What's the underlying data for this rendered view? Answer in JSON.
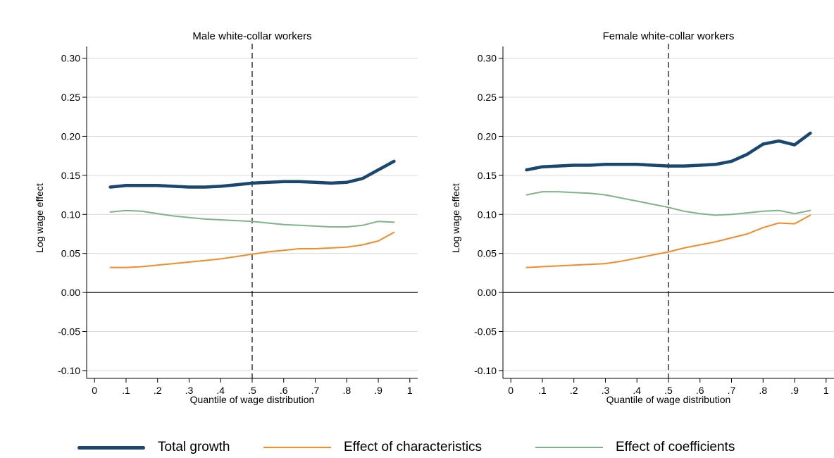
{
  "colors": {
    "total_growth": "#1a476f",
    "characteristics": "#f28c28",
    "coefficients": "#7fb389",
    "grid": "#d9d9d9",
    "axis": "#000000"
  },
  "legend": {
    "items": [
      {
        "key": "total_growth",
        "label": "Total growth"
      },
      {
        "key": "characteristics",
        "label": "Effect of characteristics"
      },
      {
        "key": "coefficients",
        "label": "Effect of coefficients"
      }
    ]
  },
  "chart_data": [
    {
      "type": "line",
      "title": "Male white-collar workers",
      "xlabel": "Quantile of wage distribution",
      "ylabel": "Log wage effect",
      "xlim": [
        -0.025,
        1.025
      ],
      "ylim": [
        -0.11,
        0.315
      ],
      "xticks": [
        0,
        0.1,
        0.2,
        0.3,
        0.4,
        0.5,
        0.6,
        0.7,
        0.8,
        0.9,
        1
      ],
      "xtick_labels": [
        "0",
        ".1",
        ".2",
        ".3",
        ".4",
        ".5",
        ".6",
        ".7",
        ".8",
        ".9",
        "1"
      ],
      "yticks": [
        -0.1,
        -0.05,
        0.0,
        0.05,
        0.1,
        0.15,
        0.2,
        0.25,
        0.3
      ],
      "ytick_labels": [
        "-0.10",
        "-0.05",
        "0.00",
        "0.05",
        "0.10",
        "0.15",
        "0.20",
        "0.25",
        "0.30"
      ],
      "grid": true,
      "reference_lines": {
        "vertical_dashed_x": 0.5,
        "horizontal_y": 0
      },
      "series": [
        {
          "name": "Total growth",
          "key": "total_growth",
          "x": [
            0.05,
            0.1,
            0.15,
            0.2,
            0.25,
            0.3,
            0.35,
            0.4,
            0.45,
            0.5,
            0.55,
            0.6,
            0.65,
            0.7,
            0.75,
            0.8,
            0.85,
            0.9,
            0.95
          ],
          "y": [
            0.135,
            0.137,
            0.137,
            0.137,
            0.136,
            0.135,
            0.135,
            0.136,
            0.138,
            0.14,
            0.141,
            0.142,
            0.142,
            0.141,
            0.14,
            0.141,
            0.146,
            0.157,
            0.168
          ]
        },
        {
          "name": "Effect of characteristics",
          "key": "characteristics",
          "x": [
            0.05,
            0.1,
            0.15,
            0.2,
            0.25,
            0.3,
            0.35,
            0.4,
            0.45,
            0.5,
            0.55,
            0.6,
            0.65,
            0.7,
            0.75,
            0.8,
            0.85,
            0.9,
            0.95
          ],
          "y": [
            0.032,
            0.032,
            0.033,
            0.035,
            0.037,
            0.039,
            0.041,
            0.043,
            0.046,
            0.049,
            0.052,
            0.054,
            0.056,
            0.056,
            0.057,
            0.058,
            0.061,
            0.066,
            0.077
          ]
        },
        {
          "name": "Effect of coefficients",
          "key": "coefficients",
          "x": [
            0.05,
            0.1,
            0.15,
            0.2,
            0.25,
            0.3,
            0.35,
            0.4,
            0.45,
            0.5,
            0.55,
            0.6,
            0.65,
            0.7,
            0.75,
            0.8,
            0.85,
            0.9,
            0.95
          ],
          "y": [
            0.103,
            0.105,
            0.104,
            0.101,
            0.098,
            0.096,
            0.094,
            0.093,
            0.092,
            0.091,
            0.089,
            0.087,
            0.086,
            0.085,
            0.084,
            0.084,
            0.086,
            0.091,
            0.09
          ]
        }
      ]
    },
    {
      "type": "line",
      "title": "Female white-collar workers",
      "xlabel": "Quantile of wage distribution",
      "ylabel": "Log wage effect",
      "xlim": [
        -0.025,
        1.025
      ],
      "ylim": [
        -0.11,
        0.315
      ],
      "xticks": [
        0,
        0.1,
        0.2,
        0.3,
        0.4,
        0.5,
        0.6,
        0.7,
        0.8,
        0.9,
        1
      ],
      "xtick_labels": [
        "0",
        ".1",
        ".2",
        ".3",
        ".4",
        ".5",
        ".6",
        ".7",
        ".8",
        ".9",
        "1"
      ],
      "yticks": [
        -0.1,
        -0.05,
        0.0,
        0.05,
        0.1,
        0.15,
        0.2,
        0.25,
        0.3
      ],
      "ytick_labels": [
        "-0.10",
        "-0.05",
        "0.00",
        "0.05",
        "0.10",
        "0.15",
        "0.20",
        "0.25",
        "0.30"
      ],
      "grid": true,
      "reference_lines": {
        "vertical_dashed_x": 0.5,
        "horizontal_y": 0
      },
      "series": [
        {
          "name": "Total growth",
          "key": "total_growth",
          "x": [
            0.05,
            0.1,
            0.15,
            0.2,
            0.25,
            0.3,
            0.35,
            0.4,
            0.45,
            0.5,
            0.55,
            0.6,
            0.65,
            0.7,
            0.75,
            0.8,
            0.85,
            0.9,
            0.95
          ],
          "y": [
            0.157,
            0.161,
            0.162,
            0.163,
            0.163,
            0.164,
            0.164,
            0.164,
            0.163,
            0.162,
            0.162,
            0.163,
            0.164,
            0.168,
            0.177,
            0.19,
            0.194,
            0.189,
            0.204
          ]
        },
        {
          "name": "Effect of characteristics",
          "key": "characteristics",
          "x": [
            0.05,
            0.1,
            0.15,
            0.2,
            0.25,
            0.3,
            0.35,
            0.4,
            0.45,
            0.5,
            0.55,
            0.6,
            0.65,
            0.7,
            0.75,
            0.8,
            0.85,
            0.9,
            0.95
          ],
          "y": [
            0.032,
            0.033,
            0.034,
            0.035,
            0.036,
            0.037,
            0.04,
            0.044,
            0.048,
            0.052,
            0.057,
            0.061,
            0.065,
            0.07,
            0.075,
            0.083,
            0.089,
            0.088,
            0.099
          ]
        },
        {
          "name": "Effect of coefficients",
          "key": "coefficients",
          "x": [
            0.05,
            0.1,
            0.15,
            0.2,
            0.25,
            0.3,
            0.35,
            0.4,
            0.45,
            0.5,
            0.55,
            0.6,
            0.65,
            0.7,
            0.75,
            0.8,
            0.85,
            0.9,
            0.95
          ],
          "y": [
            0.125,
            0.129,
            0.129,
            0.128,
            0.127,
            0.125,
            0.121,
            0.117,
            0.113,
            0.109,
            0.104,
            0.101,
            0.099,
            0.1,
            0.102,
            0.104,
            0.105,
            0.101,
            0.105
          ]
        }
      ]
    }
  ]
}
